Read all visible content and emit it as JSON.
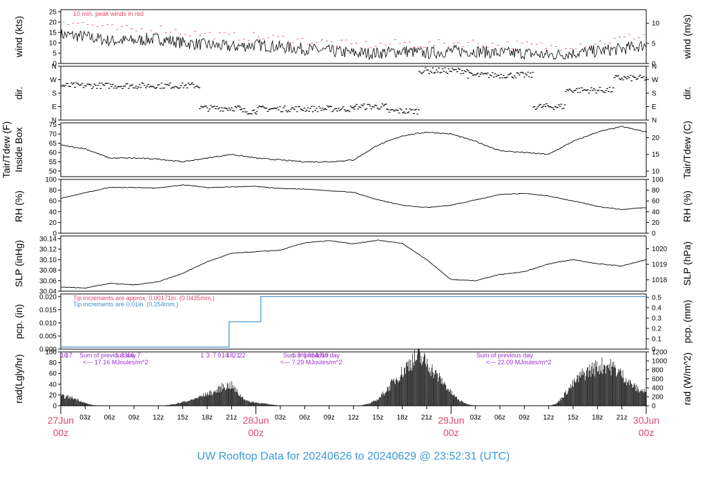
{
  "title": "UW Rooftop Data for 20240626  to  20240629 @ 23:52:31  (UTC)",
  "colors": {
    "title": "#3a9ad9",
    "date": "#e0456e",
    "peak": "#e0456e",
    "blue": "#3a8fd0",
    "purple": "#9b30d0"
  },
  "time_axis": {
    "hour_labels": [
      "03z",
      "06z",
      "09z",
      "12z",
      "15z",
      "18z",
      "21z",
      "00z"
    ],
    "day_labels": [
      {
        "day": "27Jun",
        "hour": "00z"
      },
      {
        "day": "28Jun",
        "hour": "00z"
      },
      {
        "day": "29Jun",
        "hour": "00z"
      },
      {
        "day": "30Jun",
        "hour": "00z"
      }
    ]
  },
  "panels": {
    "wind": {
      "left_label": "wind (kts)",
      "right_label": "wind (m/s)",
      "left_ticks": [
        "0",
        "5",
        "10",
        "15",
        "20",
        "25"
      ],
      "right_ticks": [
        "0",
        "5",
        "10"
      ],
      "note": "10 min. peak winds in red"
    },
    "dir": {
      "left_label": "dir.",
      "right_label": "dir.",
      "ticks": [
        "N",
        "E",
        "S",
        "W",
        "N"
      ]
    },
    "temp": {
      "left_label": "Tair/Tdew (F)",
      "left_label2": "Inside Box",
      "right_label": "Tair/Tdew (C)",
      "left_ticks": [
        "50",
        "55",
        "60",
        "65",
        "70",
        "75"
      ],
      "right_ticks": [
        "10",
        "15",
        "20"
      ]
    },
    "rh": {
      "left_label": "RH (%)",
      "right_label": "RH (%)",
      "ticks": [
        "0",
        "20",
        "40",
        "60",
        "80",
        "100"
      ]
    },
    "slp": {
      "left_label": "SLP (inHg)",
      "right_label": "SLP (hPa)",
      "left_ticks": [
        "30.04",
        "30.06",
        "30.08",
        "30.10",
        "30.12",
        "30.14"
      ],
      "right_ticks": [
        "1018",
        "1019",
        "1020"
      ]
    },
    "pcp": {
      "left_label": "pcp. (in)",
      "right_label": "pcp. (mm)",
      "left_ticks": [
        "0.000",
        "0.005",
        "0.010",
        "0.015",
        "0.020"
      ],
      "right_ticks": [
        "0",
        "0.1",
        "0.2",
        "0.3",
        "0.4",
        "0.5"
      ],
      "note1": "Tip increments are approx. 0.00171in. (0.0435mm.)",
      "note2": "Tip increments are 0.01in. (0.254mm.)"
    },
    "rad": {
      "left_label": "rad(Lgly/hr)",
      "right_label": "rad (W/m^2)",
      "left_ticks": [
        "0",
        "20",
        "40",
        "60",
        "80",
        "100"
      ],
      "right_ticks": [
        "0",
        "200",
        "400",
        "600",
        "800",
        "1000",
        "1200"
      ],
      "day_sums": [
        "<--- 17.16 MJoules/m^2",
        "<--- 7.29 MJoules/m^2",
        "<--- 22.09 MJoules/m^2"
      ],
      "sum_label": "Sum of previous day",
      "hour_marks": [
        {
          "t": 0.4,
          "v": "16"
        },
        {
          "t": 1.0,
          "v": "17"
        },
        {
          "t": 6.9,
          "v": "1"
        },
        {
          "t": 7.6,
          "v": "2"
        },
        {
          "t": 8.0,
          "v": "3"
        },
        {
          "t": 8.3,
          "v": "4"
        },
        {
          "t": 8.8,
          "v": "6"
        },
        {
          "t": 9.6,
          "v": "7"
        },
        {
          "t": 17.4,
          "v": "1"
        },
        {
          "t": 18.1,
          "v": "3"
        },
        {
          "t": 18.9,
          "v": "7"
        },
        {
          "t": 19.5,
          "v": "9"
        },
        {
          "t": 20.2,
          "v": "14"
        },
        {
          "t": 20.8,
          "v": "18"
        },
        {
          "t": 21.6,
          "v": "21"
        },
        {
          "t": 22.3,
          "v": "22"
        },
        {
          "t": 28.6,
          "v": "1"
        },
        {
          "t": 29.3,
          "v": "3"
        },
        {
          "t": 30.0,
          "v": "6"
        },
        {
          "t": 30.6,
          "v": "9"
        },
        {
          "t": 31.2,
          "v": "14"
        },
        {
          "t": 31.8,
          "v": "17"
        },
        {
          "t": 32.5,
          "v": "19"
        }
      ]
    }
  },
  "chart_data": [
    {
      "type": "line",
      "panel": "wind",
      "xlabel": "",
      "ylabel": "wind (kts)",
      "ylim": [
        0,
        26
      ],
      "x_hours": [
        0,
        3,
        6,
        9,
        12,
        15,
        18,
        21,
        24,
        27,
        30,
        33,
        36,
        39,
        42,
        45,
        48,
        51,
        54,
        57,
        60,
        63,
        66,
        69,
        72
      ],
      "series": [
        {
          "values": [
            14,
            13,
            11,
            11,
            12,
            10,
            9,
            8,
            9,
            8,
            7,
            6,
            5,
            5,
            6,
            5,
            6,
            6,
            5,
            5,
            4,
            5,
            6,
            7,
            9
          ]
        },
        {
          "name": "10 min. peak winds in red",
          "values": [
            21,
            19,
            17,
            16,
            17,
            15,
            14,
            13,
            13,
            12,
            11,
            10,
            9,
            9,
            10,
            9,
            10,
            10,
            9,
            9,
            8,
            9,
            10,
            12,
            14
          ]
        }
      ]
    },
    {
      "type": "scatter",
      "panel": "dir",
      "ylabel": "dir.",
      "ylim": [
        0,
        360
      ],
      "segments": [
        {
          "from": 0,
          "to": 17,
          "deg": 230
        },
        {
          "from": 17,
          "to": 22,
          "deg": 80
        },
        {
          "from": 22,
          "to": 24,
          "deg": 60
        },
        {
          "from": 24,
          "to": 36,
          "deg": 75
        },
        {
          "from": 36,
          "to": 40,
          "deg": 90
        },
        {
          "from": 40,
          "to": 44,
          "deg": 60
        },
        {
          "from": 44,
          "to": 50,
          "deg": 330
        },
        {
          "from": 50,
          "to": 58,
          "deg": 300
        },
        {
          "from": 58,
          "to": 62,
          "deg": 90
        },
        {
          "from": 62,
          "to": 68,
          "deg": 200
        },
        {
          "from": 68,
          "to": 72,
          "deg": 280
        }
      ]
    },
    {
      "type": "line",
      "panel": "temp",
      "ylabel": "Tair/Tdew (F)",
      "ylim": [
        47,
        76
      ],
      "x_hours": [
        0,
        3,
        6,
        9,
        12,
        15,
        18,
        21,
        24,
        27,
        30,
        33,
        36,
        39,
        42,
        45,
        48,
        51,
        54,
        57,
        60,
        63,
        66,
        69,
        72
      ],
      "values": [
        64,
        62,
        57,
        57,
        56.5,
        55,
        57,
        59,
        57,
        56,
        55,
        55,
        56,
        64,
        69,
        71,
        70,
        66,
        61,
        60,
        59,
        66,
        71,
        74,
        71
      ]
    },
    {
      "type": "line",
      "panel": "rh",
      "ylabel": "RH (%)",
      "ylim": [
        0,
        100
      ],
      "x_hours": [
        0,
        3,
        6,
        9,
        12,
        15,
        18,
        21,
        24,
        27,
        30,
        33,
        36,
        39,
        42,
        45,
        48,
        51,
        54,
        57,
        60,
        63,
        66,
        69,
        72
      ],
      "values": [
        65,
        75,
        85,
        85,
        84,
        90,
        85,
        86,
        87,
        83,
        82,
        79,
        76,
        62,
        52,
        48,
        52,
        62,
        72,
        74,
        69,
        60,
        50,
        44,
        48
      ]
    },
    {
      "type": "line",
      "panel": "slp",
      "ylabel": "SLP (inHg)",
      "ylim": [
        30.04,
        30.145
      ],
      "x_hours": [
        0,
        3,
        6,
        9,
        12,
        15,
        18,
        21,
        24,
        27,
        30,
        33,
        36,
        39,
        42,
        45,
        48,
        51,
        54,
        57,
        60,
        63,
        66,
        69,
        72
      ],
      "values": [
        30.048,
        30.046,
        30.055,
        30.052,
        30.058,
        30.074,
        30.096,
        30.112,
        30.115,
        30.118,
        30.132,
        30.136,
        30.13,
        30.137,
        30.131,
        30.1,
        30.062,
        30.06,
        30.072,
        30.077,
        30.092,
        30.1,
        30.092,
        30.088,
        30.1
      ]
    },
    {
      "type": "line",
      "panel": "pcp",
      "ylabel": "pcp. (in)",
      "ylim": [
        0,
        0.021
      ],
      "steps": [
        {
          "hour": 0,
          "value": 0.0
        },
        {
          "hour": 20.7,
          "value": 0.01
        },
        {
          "hour": 24.6,
          "value": 0.02
        },
        {
          "hour": 72,
          "value": 0.02
        }
      ]
    },
    {
      "type": "bar",
      "panel": "rad",
      "ylabel": "rad(Lgly/hr)",
      "ylim": [
        0,
        100
      ],
      "x_hours": [
        0,
        1,
        2,
        3,
        4,
        5,
        6,
        7,
        8,
        9,
        10,
        11,
        12,
        13,
        14,
        15,
        16,
        17,
        18,
        19,
        20,
        21,
        22,
        23,
        24,
        25,
        26,
        27,
        28,
        29,
        30,
        31,
        32,
        33,
        34,
        35,
        36,
        37,
        38,
        39,
        40,
        41,
        42,
        43,
        44,
        45,
        46,
        47,
        48,
        49,
        50,
        51,
        52,
        53,
        54,
        55,
        56,
        57,
        58,
        59,
        60,
        61,
        62,
        63,
        64,
        65,
        66,
        67,
        68,
        69,
        70,
        71,
        72
      ],
      "values": [
        18,
        16,
        12,
        5,
        1,
        0,
        0,
        0,
        0,
        0,
        0,
        0,
        0,
        1,
        3,
        7,
        10,
        16,
        22,
        26,
        36,
        38,
        20,
        8,
        6,
        4,
        2,
        0,
        0,
        0,
        0,
        0,
        0,
        0,
        0,
        0,
        0,
        1,
        4,
        12,
        28,
        46,
        62,
        82,
        90,
        80,
        60,
        44,
        24,
        10,
        3,
        0,
        0,
        0,
        0,
        0,
        0,
        0,
        0,
        0,
        0,
        4,
        22,
        40,
        56,
        66,
        72,
        76,
        70,
        58,
        42,
        30,
        26
      ]
    }
  ]
}
